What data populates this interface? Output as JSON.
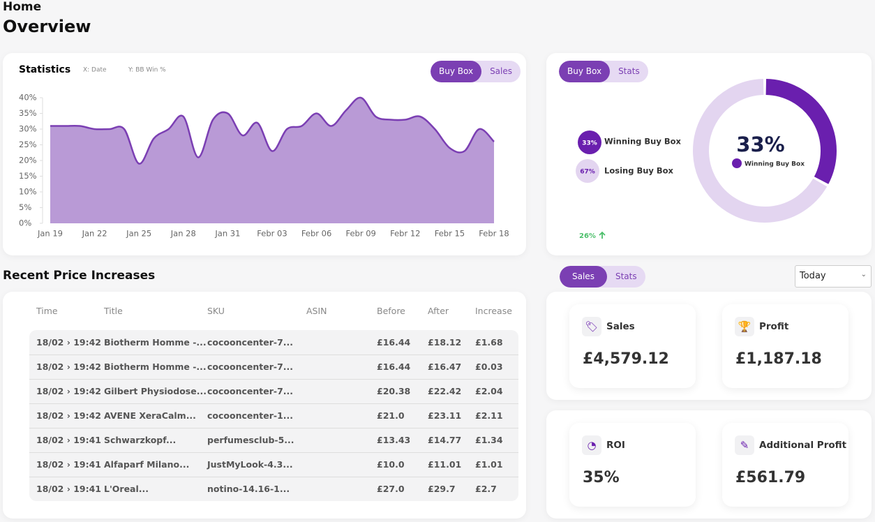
{
  "header": {
    "breadcrumb": "Home",
    "title": "Overview"
  },
  "chart_data": [
    {
      "type": "area",
      "title": "Statistics",
      "x_label": "X: Date",
      "y_label": "Y: BB Win %",
      "tabs": [
        "Buy Box",
        "Sales"
      ],
      "categories": [
        "Jan 19",
        null,
        null,
        "Jan 22",
        null,
        null,
        "Jan 25",
        null,
        null,
        "Jan 28",
        null,
        null,
        "Jan 31",
        null,
        null,
        "Febr 03",
        null,
        null,
        "Febr 06",
        null,
        null,
        "Febr 09",
        null,
        null,
        "Febr 12",
        null,
        null,
        "Febr 15",
        null,
        null,
        "Febr 18"
      ],
      "values": [
        31,
        31,
        31,
        30,
        30,
        30,
        19,
        27,
        30,
        34,
        21,
        33,
        35,
        28,
        32,
        23,
        30,
        31,
        35,
        31,
        36,
        40,
        34,
        33,
        33,
        34,
        30,
        24,
        23,
        30,
        26
      ],
      "color": "#b99ad6",
      "line_color": "#7b3fb3",
      "ylim": [
        0,
        40
      ],
      "yticks": [
        {
          "value": 0,
          "label": "0%"
        },
        {
          "value": 5,
          "label": "5%"
        },
        {
          "value": 10,
          "label": "10%"
        },
        {
          "value": 15,
          "label": "15%"
        },
        {
          "value": 20,
          "label": "20%"
        },
        {
          "value": 25,
          "label": "25%"
        },
        {
          "value": 30,
          "label": "30%"
        },
        {
          "value": 35,
          "label": "35%"
        },
        {
          "value": 40,
          "label": "40%"
        }
      ]
    },
    {
      "type": "pie",
      "tabs": [
        "Buy Box",
        "Stats"
      ],
      "categories": [
        "Winning Buy Box",
        "Losing Buy Box"
      ],
      "values": [
        33,
        67
      ],
      "value_labels": [
        "33%",
        "67%"
      ],
      "colors": [
        "#6a1fae",
        "#e3d5f0"
      ],
      "change": "26%"
    }
  ],
  "table": {
    "title": "Recent Price Increases",
    "columns": [
      "Time",
      "Title",
      "SKU",
      "ASIN",
      "Before",
      "After",
      "Increase"
    ],
    "rows": [
      {
        "time": "18/02 › 19:42",
        "title": "Biotherm Homme -...",
        "sku": "cocooncenter-7...",
        "before": "£16.44",
        "after": "£18.12",
        "increase": "£1.68"
      },
      {
        "time": "18/02 › 19:42",
        "title": "Biotherm Homme -...",
        "sku": "cocooncenter-7...",
        "before": "£16.44",
        "after": "£16.47",
        "increase": "£0.03"
      },
      {
        "time": "18/02 › 19:42",
        "title": "Gilbert Physiodose...",
        "sku": "cocooncenter-7...",
        "before": "£20.38",
        "after": "£22.42",
        "increase": "£2.04"
      },
      {
        "time": "18/02 › 19:42",
        "title": "AVENE XeraCalm...",
        "sku": "cocooncenter-1...",
        "before": "£21.0",
        "after": "£23.11",
        "increase": "£2.11"
      },
      {
        "time": "18/02 › 19:41",
        "title": "Schwarzkopf...",
        "sku": "perfumesclub-5...",
        "before": "£13.43",
        "after": "£14.77",
        "increase": "£1.34"
      },
      {
        "time": "18/02 › 19:41",
        "title": "Alfaparf Milano...",
        "sku": "JustMyLook-4.3...",
        "before": "£10.0",
        "after": "£11.01",
        "increase": "£1.01"
      },
      {
        "time": "18/02 › 19:41",
        "title": "L'Oreal...",
        "sku": "notino-14.16-1...",
        "before": "£27.0",
        "after": "£29.7",
        "increase": "£2.7"
      }
    ]
  },
  "kpis": {
    "tabs": [
      "Sales",
      "Stats"
    ],
    "period": "Today",
    "cards": [
      {
        "label": "Sales",
        "value": "£4,579.12"
      },
      {
        "label": "Profit",
        "value": "£1,187.18"
      },
      {
        "label": "ROI",
        "value": "35%"
      },
      {
        "label": "Additional Profit",
        "value": "£561.79"
      }
    ]
  }
}
